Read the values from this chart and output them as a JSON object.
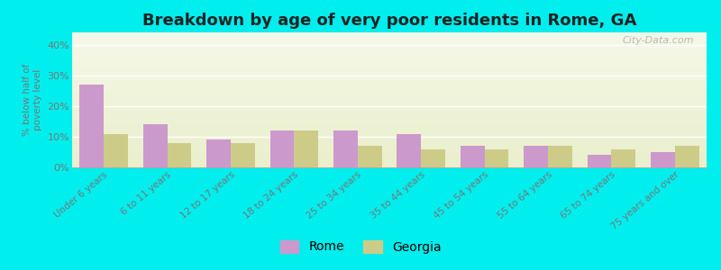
{
  "title": "Breakdown by age of very poor residents in Rome, GA",
  "ylabel": "% below half of\npoverty level",
  "categories": [
    "Under 6 years",
    "6 to 11 years",
    "12 to 17 years",
    "18 to 24 years",
    "25 to 34 years",
    "35 to 44 years",
    "45 to 54 years",
    "55 to 64 years",
    "65 to 74 years",
    "75 years and over"
  ],
  "rome_values": [
    27,
    14,
    9,
    12,
    12,
    11,
    7,
    7,
    4,
    5
  ],
  "georgia_values": [
    11,
    8,
    8,
    12,
    7,
    6,
    6,
    7,
    6,
    7
  ],
  "rome_color": "#cc99cc",
  "georgia_color": "#cccc88",
  "ylim": [
    0,
    44
  ],
  "yticks": [
    0,
    10,
    20,
    30,
    40
  ],
  "ytick_labels": [
    "0%",
    "10%",
    "20%",
    "30%",
    "40%"
  ],
  "plot_bg_top": "#f5f8e8",
  "plot_bg_bottom": "#eaefcc",
  "outer_bg": "#00eeee",
  "bar_width": 0.38,
  "title_fontsize": 13,
  "legend_rome": "Rome",
  "legend_georgia": "Georgia",
  "watermark": "City-Data.com",
  "axis_color": "#888888",
  "tick_color": "#777777"
}
